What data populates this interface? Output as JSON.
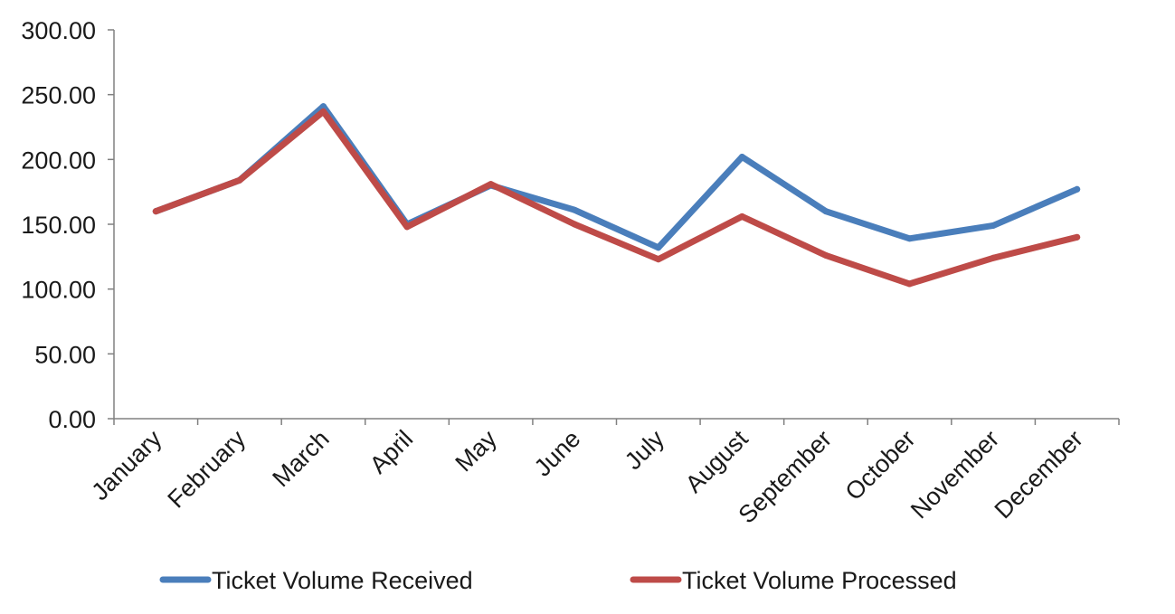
{
  "chart_data": {
    "type": "line",
    "title": "",
    "xlabel": "",
    "ylabel": "",
    "categories": [
      "January",
      "February",
      "March",
      "April",
      "May",
      "June",
      "July",
      "August",
      "September",
      "October",
      "November",
      "December"
    ],
    "ylim": [
      0,
      300
    ],
    "yticks": [
      "0.00",
      "50.00",
      "100.00",
      "150.00",
      "200.00",
      "250.00",
      "300.00"
    ],
    "ytick_values": [
      0,
      50,
      100,
      150,
      200,
      250,
      300
    ],
    "grid": false,
    "legend_position": "bottom",
    "series": [
      {
        "name": "Ticket Volume Received",
        "color": "#4a7ebb",
        "values": [
          160,
          184,
          241,
          150,
          180,
          161,
          132,
          202,
          160,
          139,
          149,
          177
        ]
      },
      {
        "name": "Ticket Volume Processed",
        "color": "#be4b48",
        "values": [
          160,
          184,
          237,
          148,
          181,
          150,
          123,
          156,
          126,
          104,
          124,
          140
        ]
      }
    ]
  }
}
